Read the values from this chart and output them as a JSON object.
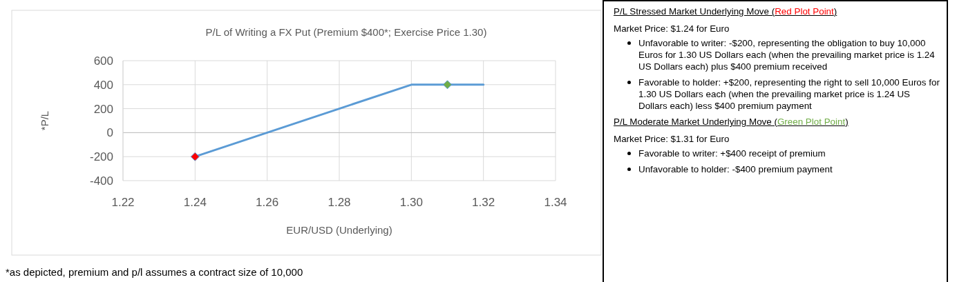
{
  "chart_data": {
    "type": "line",
    "title": "P/L of Writing a FX Put (Premium $400*; Exercise Price 1.30)",
    "xlabel": "EUR/USD (Underlying)",
    "ylabel": "*P/L",
    "series": [
      {
        "color": "#5b9bd5",
        "x": [
          1.24,
          1.26,
          1.28,
          1.3,
          1.31,
          1.32
        ],
        "values": [
          -200,
          0,
          200,
          400,
          400,
          400
        ],
        "marker": "none"
      },
      {
        "type": "scatter",
        "color": "#ff0000",
        "x": [
          1.24
        ],
        "values": [
          -200
        ],
        "marker": "diamond"
      },
      {
        "type": "scatter",
        "color": "#70ad47",
        "x": [
          1.31
        ],
        "values": [
          400
        ],
        "marker": "diamond"
      }
    ],
    "xlim": [
      1.22,
      1.34
    ],
    "xticks": [
      {
        "value": 1.22,
        "label": "1.22"
      },
      {
        "value": 1.24,
        "label": "1.24"
      },
      {
        "value": 1.26,
        "label": "1.26"
      },
      {
        "value": 1.28,
        "label": "1.28"
      },
      {
        "value": 1.3,
        "label": "1.30"
      },
      {
        "value": 1.32,
        "label": "1.32"
      },
      {
        "value": 1.34,
        "label": "1.34"
      }
    ],
    "ylim": [
      -400,
      600
    ],
    "yticks": [
      -400,
      -200,
      0,
      200,
      400,
      600
    ],
    "grid": true,
    "annotations": [
      "*as depicted, premium and p/l assumes a contract size of 10,000",
      "P/L Stressed Market Underlying Move (Red Plot Point)",
      "Market Price: $1.24 for Euro",
      "Unfavorable to writer: -$200, representing the obligation to buy 10,000 Euros for 1.30 US Dollars each (when the prevailing market price is 1.24 US Dollars each) plus $400 premium received",
      "Favorable to holder: +$200, representing the right to sell 10,000 Euros for 1.30 US Dollars each (when the prevailing market price is 1.24 US Dollars each) less $400 premium payment",
      "P/L Moderate Market Underlying Move (Green Plot Point)",
      "Market Price: $1.31 for Euro",
      "Favorable to writer: +$400 receipt of premium",
      "Unfavorable to holder: -$400 premium payment"
    ]
  }
}
